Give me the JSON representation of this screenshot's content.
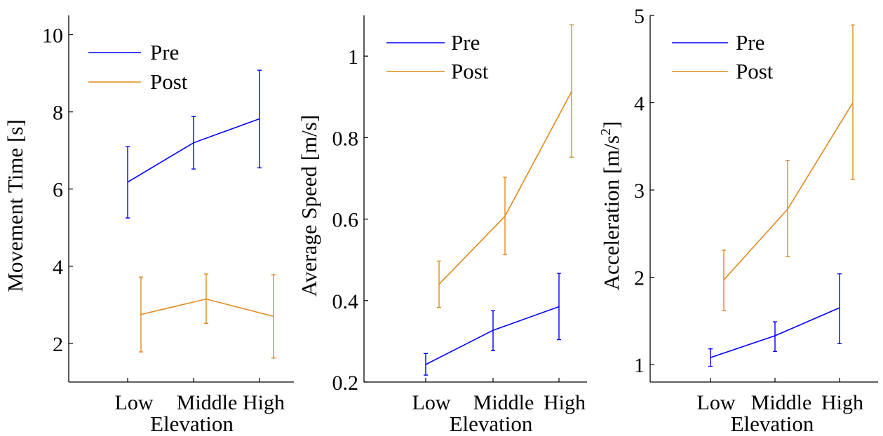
{
  "colors": {
    "pre": "#0000ff",
    "post": "#e08a1e",
    "axis": "#000000"
  },
  "chart_data": [
    {
      "type": "line",
      "xlabel": "Elevation",
      "ylabel": "Movement Time [s]",
      "ylabel_sup": "",
      "ylabel_tail": "",
      "categories": [
        "Low",
        "Middle",
        "High"
      ],
      "ylim": [
        1,
        10.5
      ],
      "yticks": [
        "2",
        "4",
        "6",
        "8",
        "10"
      ],
      "ytick_values": [
        2,
        4,
        6,
        8,
        10
      ],
      "legend": [
        "Pre",
        "Post"
      ],
      "series": [
        {
          "name": "Pre",
          "values": [
            6.18,
            7.2,
            7.82
          ],
          "lower": [
            5.25,
            6.52,
            6.55
          ],
          "upper": [
            7.1,
            7.88,
            9.08
          ]
        },
        {
          "name": "Post",
          "values": [
            2.75,
            3.15,
            2.7
          ],
          "lower": [
            1.78,
            2.52,
            1.62
          ],
          "upper": [
            3.72,
            3.8,
            3.78
          ]
        }
      ]
    },
    {
      "type": "line",
      "xlabel": "Elevation",
      "ylabel": "Average Speed [m/s]",
      "ylabel_sup": "",
      "ylabel_tail": "",
      "categories": [
        "Low",
        "Middle",
        "High"
      ],
      "ylim": [
        0.2,
        1.1
      ],
      "yticks": [
        "0.2",
        "0.4",
        "0.6",
        "0.8",
        "1"
      ],
      "ytick_values": [
        0.2,
        0.4,
        0.6,
        0.8,
        1.0
      ],
      "legend": [
        "Pre",
        "Post"
      ],
      "series": [
        {
          "name": "Pre",
          "values": [
            0.243,
            0.327,
            0.385
          ],
          "lower": [
            0.217,
            0.277,
            0.304
          ],
          "upper": [
            0.27,
            0.375,
            0.467
          ]
        },
        {
          "name": "Post",
          "values": [
            0.44,
            0.607,
            0.913
          ],
          "lower": [
            0.383,
            0.513,
            0.752
          ],
          "upper": [
            0.497,
            0.703,
            1.077
          ]
        }
      ]
    },
    {
      "type": "line",
      "xlabel": "Elevation",
      "ylabel": "Acceleration [m/s",
      "ylabel_sup": "2",
      "ylabel_tail": "]",
      "categories": [
        "Low",
        "Middle",
        "High"
      ],
      "ylim": [
        0.8,
        5
      ],
      "yticks": [
        "1",
        "2",
        "3",
        "4",
        "5"
      ],
      "ytick_values": [
        1,
        2,
        3,
        4,
        5
      ],
      "legend": [
        "Pre",
        "Post"
      ],
      "series": [
        {
          "name": "Pre",
          "values": [
            1.08,
            1.33,
            1.65
          ],
          "lower": [
            0.98,
            1.15,
            1.24
          ],
          "upper": [
            1.18,
            1.49,
            2.04
          ]
        },
        {
          "name": "Post",
          "values": [
            1.97,
            2.78,
            4.0
          ],
          "lower": [
            1.62,
            2.24,
            3.12
          ],
          "upper": [
            2.31,
            3.34,
            4.89
          ]
        }
      ]
    }
  ]
}
